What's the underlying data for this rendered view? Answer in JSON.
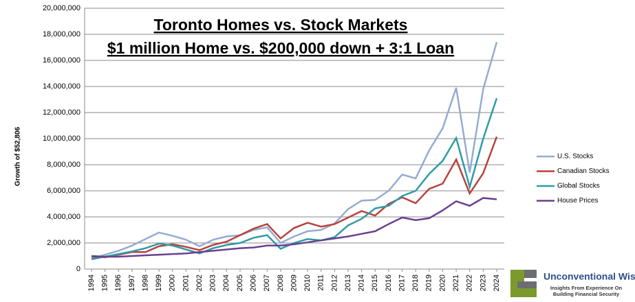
{
  "chart_data": {
    "type": "line",
    "title": "Toronto Homes vs. Stock Markets",
    "subtitle": "$1 million Home vs. $200,000 down + 3:1 Loan",
    "y_label": "Growth of $52,806",
    "categories": [
      "1994",
      "1995",
      "1996",
      "1997",
      "1998",
      "1999",
      "2000",
      "2001",
      "2002",
      "2003",
      "2004",
      "2005",
      "2006",
      "2007",
      "2008",
      "2009",
      "2010",
      "2011",
      "2012",
      "2013",
      "2014",
      "2015",
      "2016",
      "2017",
      "2018",
      "2019",
      "2020",
      "2021",
      "2022",
      "2023",
      "2024"
    ],
    "series": [
      {
        "name": "U.S. Stocks",
        "color": "#95abd1",
        "values": [
          800000,
          1100000,
          1400000,
          1800000,
          2300000,
          2800000,
          2550000,
          2250000,
          1750000,
          2250000,
          2500000,
          2600000,
          3000000,
          3200000,
          2000000,
          2500000,
          2900000,
          3000000,
          3500000,
          4600000,
          5250000,
          5300000,
          6000000,
          7250000,
          6950000,
          9100000,
          10800000,
          13900000,
          7400000,
          13800000,
          17400000
        ]
      },
      {
        "name": "Canadian Stocks",
        "color": "#b8413c",
        "values": [
          950000,
          900000,
          1100000,
          1300000,
          1300000,
          1750000,
          1900000,
          1700000,
          1450000,
          1850000,
          2100000,
          2600000,
          3100000,
          3450000,
          2350000,
          3150000,
          3550000,
          3250000,
          3450000,
          3950000,
          4450000,
          4100000,
          5000000,
          5500000,
          5050000,
          6150000,
          6550000,
          8400000,
          5800000,
          7350000,
          10150000
        ]
      },
      {
        "name": "Global Stocks",
        "color": "#2e9ba6",
        "values": [
          750000,
          950000,
          1150000,
          1350000,
          1600000,
          1950000,
          1800000,
          1500000,
          1200000,
          1600000,
          1850000,
          2000000,
          2400000,
          2600000,
          1550000,
          2000000,
          2300000,
          2200000,
          2450000,
          3350000,
          3850000,
          4650000,
          4850000,
          5600000,
          6000000,
          7300000,
          8300000,
          10050000,
          6300000,
          10000000,
          13100000
        ]
      },
      {
        "name": "House Prices",
        "color": "#6a3f8e",
        "values": [
          1000000,
          950000,
          950000,
          1000000,
          1050000,
          1100000,
          1150000,
          1200000,
          1300000,
          1400000,
          1500000,
          1600000,
          1650000,
          1800000,
          1800000,
          1900000,
          2050000,
          2200000,
          2350000,
          2500000,
          2700000,
          2900000,
          3450000,
          3950000,
          3750000,
          3900000,
          4500000,
          5200000,
          4850000,
          5450000,
          5350000
        ]
      }
    ],
    "ylim": [
      0,
      20000000
    ],
    "yticks": [
      0,
      {
        "value": 2000000,
        "label": "2,000,000"
      },
      {
        "value": 4000000,
        "label": "4,000,000"
      },
      {
        "value": 6000000,
        "label": "6,000,000"
      },
      {
        "value": 8000000,
        "label": "8,000,000"
      },
      {
        "value": 10000000,
        "label": "10,000,000"
      },
      {
        "value": 12000000,
        "label": "12,000,000"
      },
      {
        "value": 14000000,
        "label": "14,000,000"
      },
      {
        "value": 16000000,
        "label": "16,000,000"
      },
      {
        "value": 18000000,
        "label": "18,000,000"
      },
      {
        "value": 20000000,
        "label": "20,000,000"
      }
    ],
    "grid": true,
    "legend": "right"
  },
  "logo": {
    "name": "Unconventional Wisdom",
    "tagline": "Insights From Experience On Building Financial Security"
  }
}
